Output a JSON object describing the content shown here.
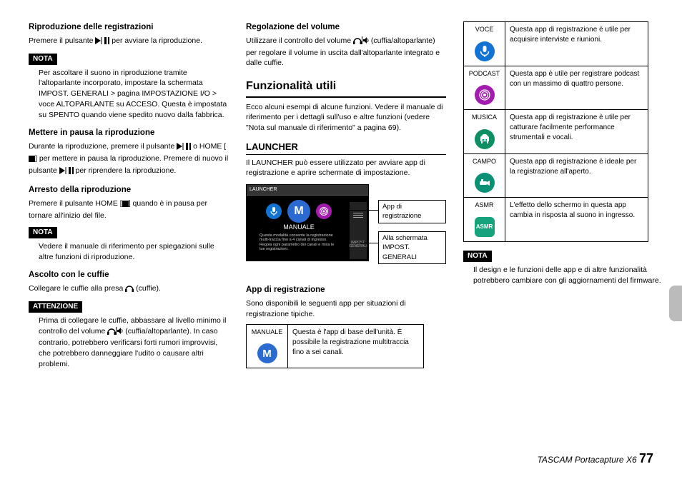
{
  "col1": {
    "h1": "Riproduzione delle registrazioni",
    "p1a": "Premere il pulsante ",
    "p1b": " per avviare la riproduzione.",
    "nota1_label": "NOTA",
    "nota1_body": "Per ascoltare il suono in riproduzione tramite l'altoparlante incorporato, impostare la schermata IMPOST. GENERALI > pagina IMPOSTAZIONE I/O > voce ALTOPARLANTE su ACCESO. Questa è impostata su SPENTO quando viene spedito nuovo dalla fabbrica.",
    "h2": "Mettere in pausa la riproduzione",
    "p2a": "Durante la riproduzione, premere il pulsante ",
    "p2b": " o HOME [",
    "p2c": "] per mettere in pausa la riproduzione. Premere di nuovo il pulsante ",
    "p2d": " per riprendere la riproduzione.",
    "h3": "Arresto della riproduzione",
    "p3a": "Premere il pulsante  HOME [",
    "p3b": "] quando è in pausa per tornare all'inizio del file.",
    "nota2_label": "NOTA",
    "nota2_body": "Vedere il manuale di riferimento per spiegazioni sulle altre funzioni di riproduzione.",
    "h4": "Ascolto con le cuffie",
    "p4a": "Collegare le cuffie alla presa ",
    "p4b": " (cuffie).",
    "att_label": "ATTENZIONE",
    "att_body_a": "Prima di collegare le cuffie, abbassare al livello minimo il controllo del volume ",
    "att_body_b": " (cuffia/altoparlante). In caso contrario, potrebbero verificarsi forti rumori improvvisi, che potrebbero danneggiare l'udito o causare altri problemi."
  },
  "col2": {
    "h1": "Regolazione del volume",
    "p1a": "Utilizzare il controllo del volume ",
    "p1b": " (cuffia/altoparlante) per regolare il volume in uscita dall'altoparlante integrato e dalle cuffie.",
    "section": "Funzionalità utili",
    "section_intro": "Ecco alcuni esempi di alcune funzioni. Vedere il manuale di riferimento per i dettagli sull'uso e altre funzioni (vedere \"Nota sul manuale di riferimento\" a pagina 69).",
    "sub": "LAUNCHER",
    "sub_intro": "Il LAUNCHER può essere utilizzato per avviare app di registrazione e aprire schermate di impostazione.",
    "launcher": {
      "header": "LAUNCHER",
      "applabel": "MANUALE",
      "desc": "Questa modalità consente la registrazione multi-traccia fino a 4 canali di ingresso. Regola ogni parametro dei canali e mixa le tue registrazioni.",
      "impost": "IMPOST. GENERALI"
    },
    "callout1": "App di registrazione",
    "callout2a": "Alla schermata",
    "callout2b": "IMPOST. GENERALI",
    "h2": "App di registrazione",
    "p2": "Sono disponibili le seguenti app per situazioni di registrazione tipiche.",
    "manuale_label": "MANUALE",
    "manuale_desc": "Questa è l'app di base dell'unità. È possibile la registrazione multitraccia fino a sei canali."
  },
  "col3": {
    "rows": [
      {
        "label": "VOCE",
        "color": "#1173d4",
        "desc": "Questa app di registrazione è utile per acquisire interviste e riunioni."
      },
      {
        "label": "PODCAST",
        "color": "#a31caf",
        "desc": "Questa app è utile per registrare podcast con un massimo di quattro persone."
      },
      {
        "label": "MUSICA",
        "color": "#0d8f64",
        "desc": "Questa app di registrazione è utile per catturare facilmente performance strumentali e vocali."
      },
      {
        "label": "CAMPO",
        "color": "#0a9175",
        "desc": "Questa app di registrazione è ideale per la registrazione all'aperto."
      },
      {
        "label": "ASMR",
        "color": "#14a37a",
        "desc": "L'effetto dello schermo in questa app cambia in risposta al suono in ingresso."
      }
    ],
    "nota_label": "NOTA",
    "nota_body": "Il design e le funzioni delle app e di altre funzionalità potrebbero cambiare con gli aggiornamenti del firmware."
  },
  "footer": {
    "product": "TASCAM Portacapture X6",
    "page": "77"
  }
}
